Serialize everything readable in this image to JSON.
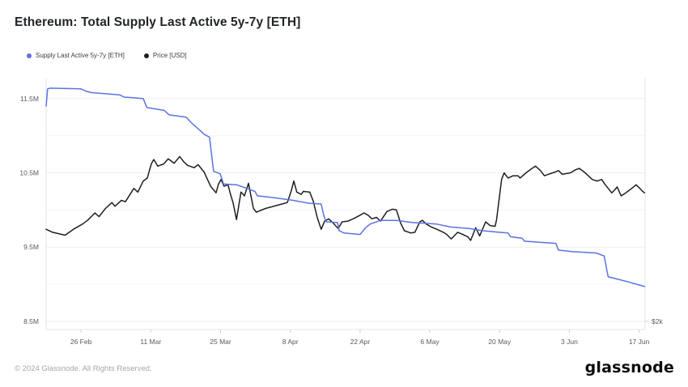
{
  "header": {
    "title": "Ethereum: Total Supply Last Active 5y-7y [ETH]"
  },
  "legend": [
    {
      "label": "Supply Last Active 5y-7y [ETH]",
      "color": "#5b72e2"
    },
    {
      "label": "Price [USD]",
      "color": "#1f1f1f"
    }
  ],
  "footer": {
    "copyright": "© 2024 Glassnode. All Rights Reserved.",
    "brand": "glassnode"
  },
  "chart_data": {
    "type": "line",
    "title": "Ethereum: Total Supply Last Active 5y-7y [ETH]",
    "x_unit": "days since 19 Feb 2024",
    "xlim": [
      0,
      120.2
    ],
    "grid": "horizontal-only",
    "legend_position": "top-left",
    "x_ticks": [
      {
        "label": "26 Feb",
        "day": 7
      },
      {
        "label": "11 Mar",
        "day": 21
      },
      {
        "label": "25 Mar",
        "day": 35
      },
      {
        "label": "8 Apr",
        "day": 49
      },
      {
        "label": "22 Apr",
        "day": 63
      },
      {
        "label": "6 May",
        "day": 77
      },
      {
        "label": "20 May",
        "day": 91
      },
      {
        "label": "3 Jun",
        "day": 105
      },
      {
        "label": "17 Jun",
        "day": 119
      }
    ],
    "left_axis": {
      "unit": "ETH (millions)",
      "range": [
        8.39,
        11.77
      ],
      "ticks": [
        {
          "label": "11.5M",
          "value": 11.5
        },
        {
          "label": "10.5M",
          "value": 10.5
        },
        {
          "label": "9.5M",
          "value": 9.5
        },
        {
          "label": "8.5M",
          "value": 8.5
        }
      ],
      "minor_values": [
        11.0,
        10.0,
        9.0
      ]
    },
    "right_axis": {
      "unit": "USD (thousands)",
      "range": [
        1.89,
        5.27
      ],
      "ticks": [
        {
          "label": "$2k",
          "value": 2.0
        }
      ]
    },
    "series": [
      {
        "name": "Supply Last Active 5y-7y [ETH]",
        "axis": "left",
        "unit": "M ETH",
        "color": "#5b72e2",
        "points": [
          [
            0,
            11.4
          ],
          [
            0.3,
            11.63
          ],
          [
            0.8,
            11.64
          ],
          [
            7,
            11.63
          ],
          [
            8,
            11.6
          ],
          [
            9.1,
            11.58
          ],
          [
            14.8,
            11.55
          ],
          [
            15.6,
            11.52
          ],
          [
            19.5,
            11.5
          ],
          [
            20.2,
            11.38
          ],
          [
            23.7,
            11.34
          ],
          [
            24.7,
            11.28
          ],
          [
            28.1,
            11.25
          ],
          [
            29.2,
            11.17
          ],
          [
            30.9,
            11.07
          ],
          [
            31.7,
            11.02
          ],
          [
            32.8,
            10.98
          ],
          [
            33.1,
            10.8
          ],
          [
            33.6,
            10.52
          ],
          [
            34.9,
            10.49
          ],
          [
            35.6,
            10.35
          ],
          [
            38.2,
            10.34
          ],
          [
            39.5,
            10.31
          ],
          [
            41.9,
            10.25
          ],
          [
            42.4,
            10.19
          ],
          [
            45.2,
            10.17
          ],
          [
            49.5,
            10.13
          ],
          [
            52.8,
            10.09
          ],
          [
            55.2,
            10.08
          ],
          [
            55.7,
            9.93
          ],
          [
            56.2,
            9.84
          ],
          [
            58.5,
            9.83
          ],
          [
            58.8,
            9.72
          ],
          [
            59.8,
            9.69
          ],
          [
            63,
            9.67
          ],
          [
            64.1,
            9.76
          ],
          [
            65,
            9.81
          ],
          [
            67.1,
            9.86
          ],
          [
            70.3,
            9.86
          ],
          [
            73.6,
            9.83
          ],
          [
            78.4,
            9.81
          ],
          [
            81.2,
            9.77
          ],
          [
            84.9,
            9.75
          ],
          [
            87.7,
            9.72
          ],
          [
            90.9,
            9.7
          ],
          [
            92.7,
            9.69
          ],
          [
            93.2,
            9.64
          ],
          [
            95.5,
            9.62
          ],
          [
            96,
            9.58
          ],
          [
            97.9,
            9.57
          ],
          [
            102.3,
            9.55
          ],
          [
            102.8,
            9.46
          ],
          [
            105.5,
            9.44
          ],
          [
            110.4,
            9.42
          ],
          [
            112,
            9.38
          ],
          [
            112.4,
            9.23
          ],
          [
            112.8,
            9.1
          ],
          [
            114.6,
            9.07
          ],
          [
            116.9,
            9.03
          ],
          [
            119,
            8.99
          ],
          [
            120.1,
            8.97
          ]
        ]
      },
      {
        "name": "Price [USD]",
        "axis": "right",
        "unit": "k USD",
        "color": "#1f1f1f",
        "points": [
          [
            0,
            3.24
          ],
          [
            1.3,
            3.2
          ],
          [
            3.8,
            3.16
          ],
          [
            5.7,
            3.25
          ],
          [
            7.3,
            3.31
          ],
          [
            8.3,
            3.36
          ],
          [
            9.8,
            3.46
          ],
          [
            10.6,
            3.41
          ],
          [
            11.9,
            3.52
          ],
          [
            13.2,
            3.6
          ],
          [
            13.8,
            3.55
          ],
          [
            15.1,
            3.63
          ],
          [
            15.9,
            3.61
          ],
          [
            17.6,
            3.79
          ],
          [
            18.4,
            3.74
          ],
          [
            19.5,
            3.89
          ],
          [
            20.3,
            3.93
          ],
          [
            21.1,
            4.12
          ],
          [
            21.6,
            4.18
          ],
          [
            22.4,
            4.09
          ],
          [
            23.6,
            4.12
          ],
          [
            24.5,
            4.19
          ],
          [
            25.7,
            4.13
          ],
          [
            26.8,
            4.22
          ],
          [
            27.6,
            4.15
          ],
          [
            28.4,
            4.1
          ],
          [
            29.7,
            4.07
          ],
          [
            30.5,
            4.11
          ],
          [
            31.7,
            4.01
          ],
          [
            33,
            3.82
          ],
          [
            34.1,
            3.73
          ],
          [
            34.6,
            3.85
          ],
          [
            35.1,
            3.91
          ],
          [
            35.7,
            3.82
          ],
          [
            36.5,
            3.84
          ],
          [
            37,
            3.71
          ],
          [
            37.5,
            3.6
          ],
          [
            38.2,
            3.37
          ],
          [
            39.1,
            3.74
          ],
          [
            39.8,
            3.69
          ],
          [
            40.6,
            3.86
          ],
          [
            41.6,
            3.52
          ],
          [
            42.2,
            3.47
          ],
          [
            44,
            3.52
          ],
          [
            46.8,
            3.57
          ],
          [
            48.4,
            3.6
          ],
          [
            49.2,
            3.76
          ],
          [
            49.7,
            3.89
          ],
          [
            50.3,
            3.74
          ],
          [
            51.2,
            3.71
          ],
          [
            51.6,
            3.75
          ],
          [
            52.9,
            3.74
          ],
          [
            53.6,
            3.62
          ],
          [
            54.4,
            3.4
          ],
          [
            55.2,
            3.24
          ],
          [
            55.9,
            3.35
          ],
          [
            56.7,
            3.38
          ],
          [
            57.5,
            3.33
          ],
          [
            58.6,
            3.25
          ],
          [
            59.4,
            3.34
          ],
          [
            60.6,
            3.35
          ],
          [
            61.9,
            3.39
          ],
          [
            63,
            3.43
          ],
          [
            63.8,
            3.46
          ],
          [
            64.6,
            3.43
          ],
          [
            65.4,
            3.38
          ],
          [
            66.3,
            3.4
          ],
          [
            67.1,
            3.35
          ],
          [
            68.4,
            3.48
          ],
          [
            69.5,
            3.51
          ],
          [
            70.3,
            3.5
          ],
          [
            71.1,
            3.33
          ],
          [
            71.9,
            3.22
          ],
          [
            73.2,
            3.19
          ],
          [
            74,
            3.2
          ],
          [
            75,
            3.34
          ],
          [
            75.5,
            3.36
          ],
          [
            76.3,
            3.31
          ],
          [
            77.3,
            3.27
          ],
          [
            78.4,
            3.24
          ],
          [
            79.7,
            3.2
          ],
          [
            80.4,
            3.17
          ],
          [
            81.3,
            3.11
          ],
          [
            82.6,
            3.2
          ],
          [
            83.6,
            3.17
          ],
          [
            84.6,
            3.14
          ],
          [
            85.2,
            3.09
          ],
          [
            86.2,
            3.26
          ],
          [
            87,
            3.15
          ],
          [
            88.2,
            3.34
          ],
          [
            89.1,
            3.29
          ],
          [
            90.1,
            3.28
          ],
          [
            90.4,
            3.37
          ],
          [
            90.9,
            3.64
          ],
          [
            91.4,
            3.91
          ],
          [
            91.9,
            4.0
          ],
          [
            92.7,
            3.93
          ],
          [
            93.7,
            3.96
          ],
          [
            94.7,
            3.96
          ],
          [
            95.1,
            3.93
          ],
          [
            96.3,
            4.0
          ],
          [
            97.3,
            4.05
          ],
          [
            98.2,
            4.09
          ],
          [
            99.2,
            4.03
          ],
          [
            100,
            3.96
          ],
          [
            101.2,
            3.99
          ],
          [
            102.1,
            4.01
          ],
          [
            102.8,
            4.03
          ],
          [
            103.6,
            3.98
          ],
          [
            104.4,
            3.99
          ],
          [
            105.2,
            4.0
          ],
          [
            106.2,
            4.04
          ],
          [
            107,
            4.06
          ],
          [
            108,
            4.01
          ],
          [
            108.8,
            3.96
          ],
          [
            109.6,
            3.91
          ],
          [
            110.6,
            3.89
          ],
          [
            111.5,
            3.91
          ],
          [
            112.2,
            3.84
          ],
          [
            112.8,
            3.79
          ],
          [
            113.5,
            3.73
          ],
          [
            114.1,
            3.77
          ],
          [
            114.6,
            3.81
          ],
          [
            115.4,
            3.69
          ],
          [
            116.1,
            3.72
          ],
          [
            116.9,
            3.76
          ],
          [
            117.7,
            3.8
          ],
          [
            118.4,
            3.84
          ],
          [
            119,
            3.8
          ],
          [
            119.7,
            3.75
          ],
          [
            120.1,
            3.73
          ]
        ]
      }
    ]
  }
}
